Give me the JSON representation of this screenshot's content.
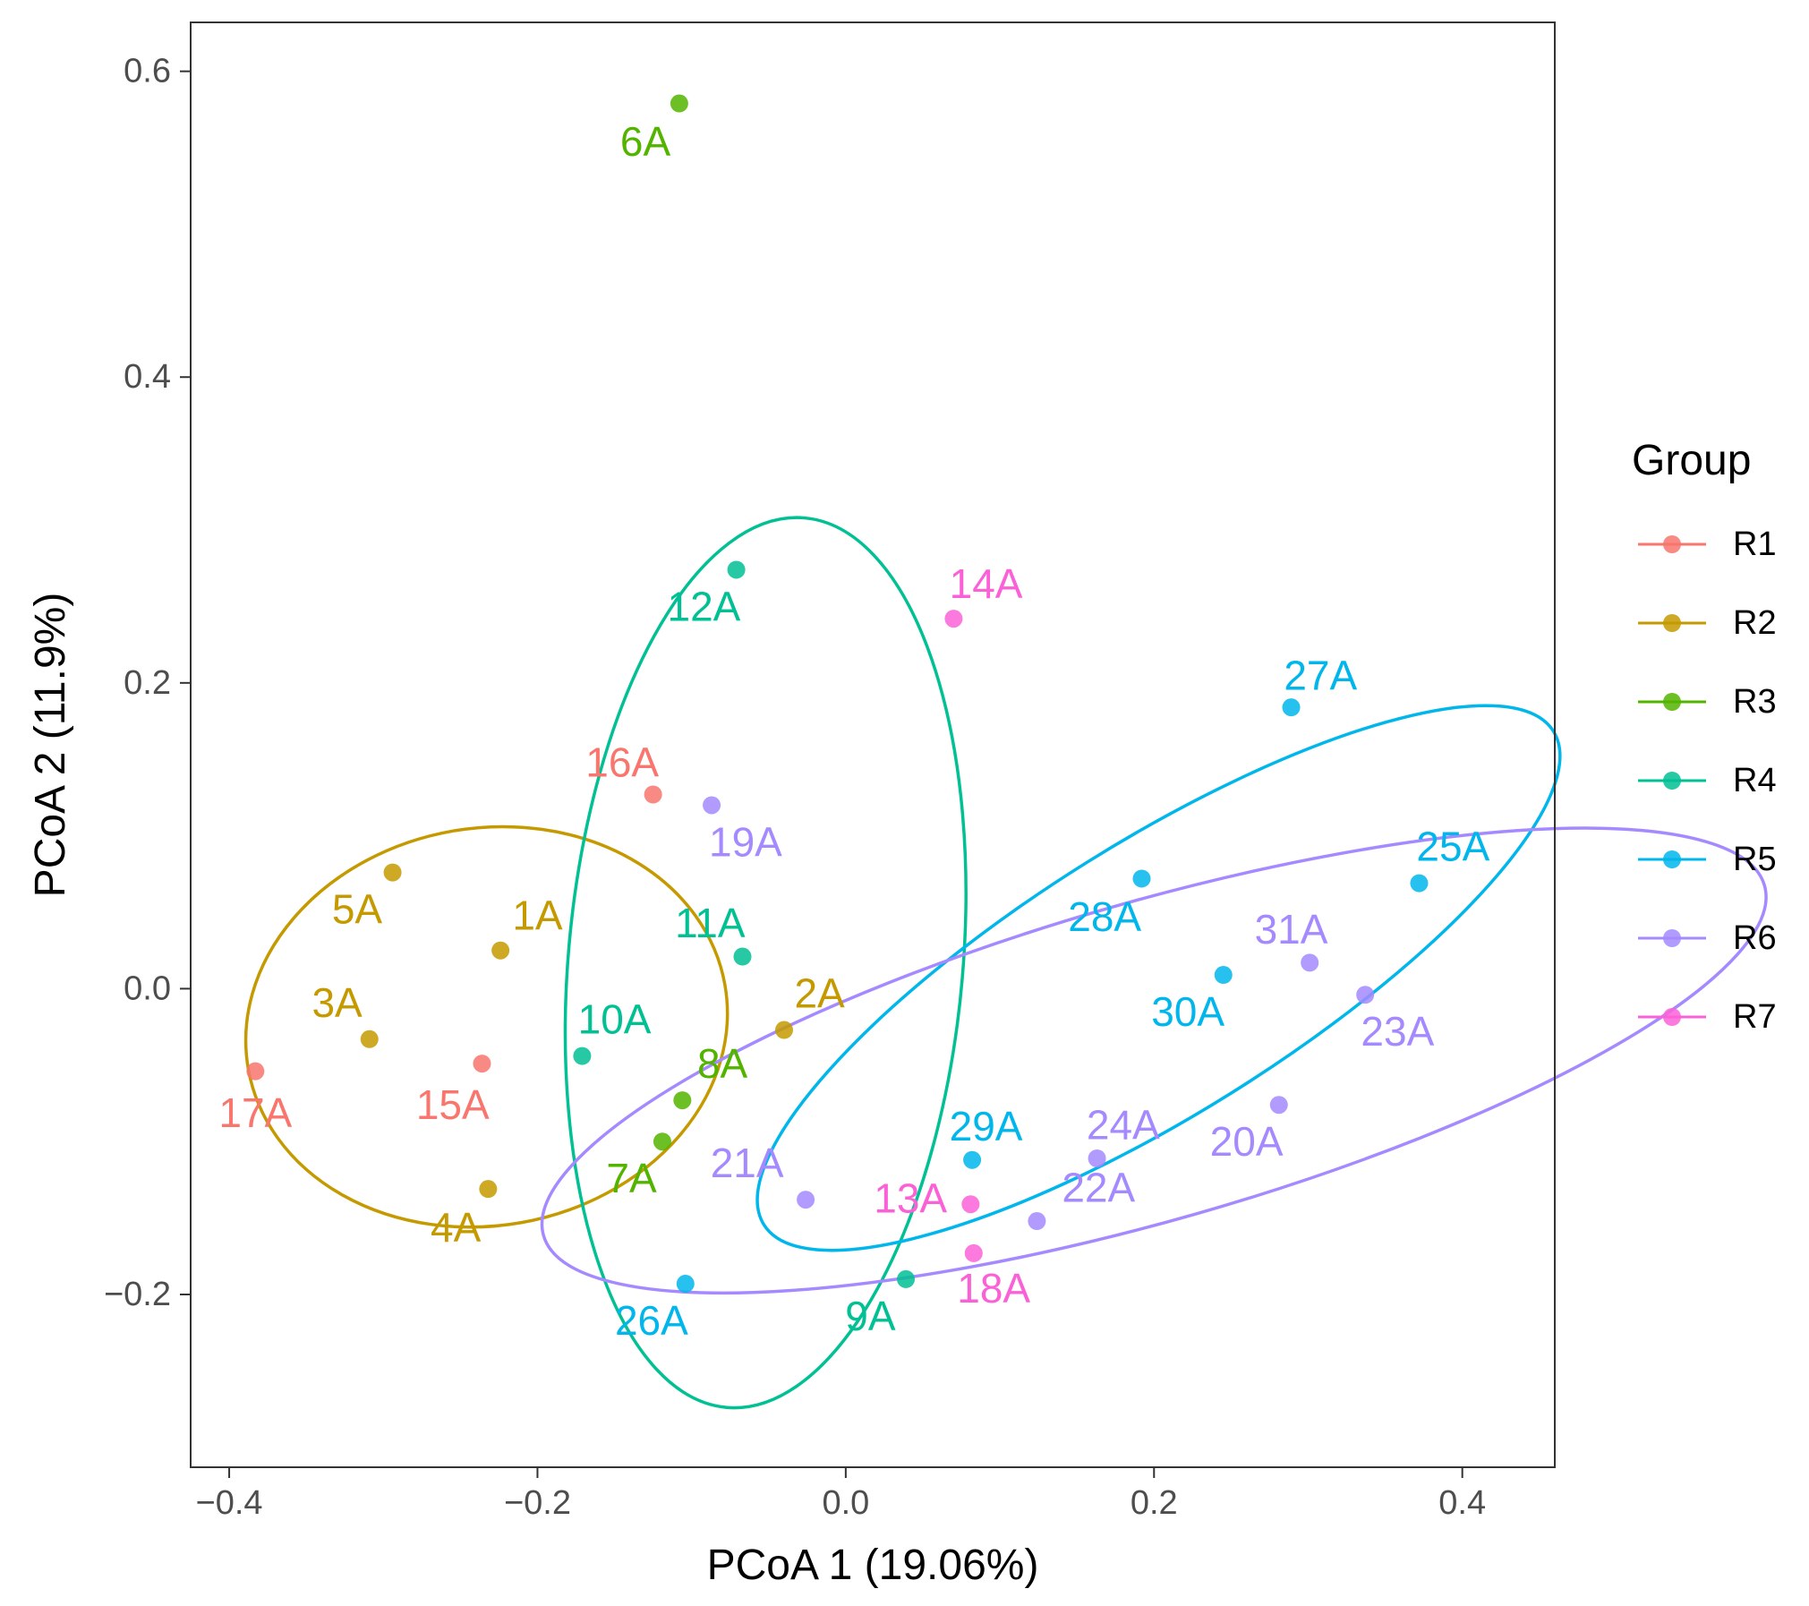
{
  "chart_data": {
    "type": "scatter",
    "title": "",
    "xlabel": "PCoA 1 (19.06%)",
    "ylabel": "PCoA 2 (11.9%)",
    "xlim": [
      -0.425,
      0.46
    ],
    "ylim": [
      -0.313,
      0.632
    ],
    "xticks": [
      -0.4,
      -0.2,
      0.0,
      0.2,
      0.4
    ],
    "xtick_labels": [
      "−0.4",
      "−0.2",
      "0.0",
      "0.2",
      "0.4"
    ],
    "yticks": [
      -0.2,
      0.0,
      0.2,
      0.4,
      0.6
    ],
    "ytick_labels": [
      "−0.2",
      "0.0",
      "0.2",
      "0.4",
      "0.6"
    ],
    "grid": false,
    "legend": {
      "title": "Group",
      "position": "right",
      "entries": [
        {
          "name": "R1",
          "color": "#F8766D"
        },
        {
          "name": "R2",
          "color": "#C49A00"
        },
        {
          "name": "R3",
          "color": "#53B400"
        },
        {
          "name": "R4",
          "color": "#00C094"
        },
        {
          "name": "R5",
          "color": "#00B6EB"
        },
        {
          "name": "R6",
          "color": "#A58AFF"
        },
        {
          "name": "R7",
          "color": "#FB61D7"
        }
      ]
    },
    "series": [
      {
        "name": "R1",
        "color": "#F8766D",
        "points": [
          {
            "label": "16A",
            "x": -0.125,
            "y": 0.127,
            "lx": -0.145,
            "ly": 0.148
          },
          {
            "label": "17A",
            "x": -0.383,
            "y": -0.054,
            "lx": -0.383,
            "ly": -0.081
          },
          {
            "label": "15A",
            "x": -0.236,
            "y": -0.049,
            "lx": -0.255,
            "ly": -0.076
          }
        ]
      },
      {
        "name": "R2",
        "color": "#C49A00",
        "points": [
          {
            "label": "5A",
            "x": -0.294,
            "y": 0.076,
            "lx": -0.317,
            "ly": 0.052
          },
          {
            "label": "1A",
            "x": -0.224,
            "y": 0.025,
            "lx": -0.2,
            "ly": 0.048
          },
          {
            "label": "3A",
            "x": -0.309,
            "y": -0.033,
            "lx": -0.33,
            "ly": -0.009
          },
          {
            "label": "2A",
            "x": -0.04,
            "y": -0.027,
            "lx": -0.017,
            "ly": -0.003
          },
          {
            "label": "4A",
            "x": -0.232,
            "y": -0.131,
            "lx": -0.253,
            "ly": -0.156
          }
        ]
      },
      {
        "name": "R3",
        "color": "#53B400",
        "points": [
          {
            "label": "6A",
            "x": -0.108,
            "y": 0.579,
            "lx": -0.13,
            "ly": 0.554
          },
          {
            "label": "8A",
            "x": -0.106,
            "y": -0.073,
            "lx": -0.08,
            "ly": -0.049
          },
          {
            "label": "7A",
            "x": -0.119,
            "y": -0.1,
            "lx": -0.139,
            "ly": -0.124
          }
        ]
      },
      {
        "name": "R4",
        "color": "#00C094",
        "points": [
          {
            "label": "12A",
            "x": -0.071,
            "y": 0.274,
            "lx": -0.092,
            "ly": 0.25
          },
          {
            "label": "11A",
            "x": -0.067,
            "y": 0.021,
            "lx": -0.088,
            "ly": 0.043
          },
          {
            "label": "10A",
            "x": -0.171,
            "y": -0.044,
            "lx": -0.15,
            "ly": -0.02
          },
          {
            "label": "9A",
            "x": 0.039,
            "y": -0.19,
            "lx": 0.016,
            "ly": -0.214
          }
        ]
      },
      {
        "name": "R5",
        "color": "#00B6EB",
        "points": [
          {
            "label": "27A",
            "x": 0.289,
            "y": 0.184,
            "lx": 0.308,
            "ly": 0.205
          },
          {
            "label": "25A",
            "x": 0.372,
            "y": 0.069,
            "lx": 0.394,
            "ly": 0.093
          },
          {
            "label": "28A",
            "x": 0.192,
            "y": 0.072,
            "lx": 0.168,
            "ly": 0.047
          },
          {
            "label": "30A",
            "x": 0.245,
            "y": 0.009,
            "lx": 0.222,
            "ly": -0.015
          },
          {
            "label": "29A",
            "x": 0.082,
            "y": -0.112,
            "lx": 0.091,
            "ly": -0.09
          },
          {
            "label": "26A",
            "x": -0.104,
            "y": -0.193,
            "lx": -0.126,
            "ly": -0.217
          }
        ]
      },
      {
        "name": "R6",
        "color": "#A58AFF",
        "points": [
          {
            "label": "19A",
            "x": -0.087,
            "y": 0.12,
            "lx": -0.065,
            "ly": 0.096
          },
          {
            "label": "31A",
            "x": 0.301,
            "y": 0.017,
            "lx": 0.289,
            "ly": 0.039
          },
          {
            "label": "23A",
            "x": 0.337,
            "y": -0.004,
            "lx": 0.358,
            "ly": -0.028
          },
          {
            "label": "24A",
            "x": 0.163,
            "y": -0.111,
            "lx": 0.18,
            "ly": -0.089
          },
          {
            "label": "20A",
            "x": 0.281,
            "y": -0.076,
            "lx": 0.26,
            "ly": -0.1
          },
          {
            "label": "21A",
            "x": -0.026,
            "y": -0.138,
            "lx": -0.064,
            "ly": -0.114
          },
          {
            "label": "22A",
            "x": 0.124,
            "y": -0.152,
            "lx": 0.164,
            "ly": -0.13
          }
        ]
      },
      {
        "name": "R7",
        "color": "#FB61D7",
        "points": [
          {
            "label": "14A",
            "x": 0.07,
            "y": 0.242,
            "lx": 0.091,
            "ly": 0.265
          },
          {
            "label": "13A",
            "x": 0.081,
            "y": -0.141,
            "lx": 0.042,
            "ly": -0.137
          },
          {
            "label": "18A",
            "x": 0.083,
            "y": -0.173,
            "lx": 0.096,
            "ly": -0.196
          }
        ]
      }
    ],
    "ellipses": [
      {
        "group": "R2",
        "color": "#C49A00",
        "cx": -0.233,
        "cy": -0.025,
        "rx": 0.157,
        "ry": 0.13,
        "angle": 10
      },
      {
        "group": "R4",
        "color": "#00C094",
        "cx": -0.052,
        "cy": 0.017,
        "rx": 0.128,
        "ry": 0.292,
        "angle": -5
      },
      {
        "group": "R5",
        "color": "#00B6EB",
        "cx": 0.203,
        "cy": 0.007,
        "rx": 0.302,
        "ry": 0.089,
        "angle": 32
      },
      {
        "group": "R6",
        "color": "#A58AFF",
        "cx": 0.2,
        "cy": -0.047,
        "rx": 0.412,
        "ry": 0.104,
        "angle": 16
      }
    ]
  }
}
